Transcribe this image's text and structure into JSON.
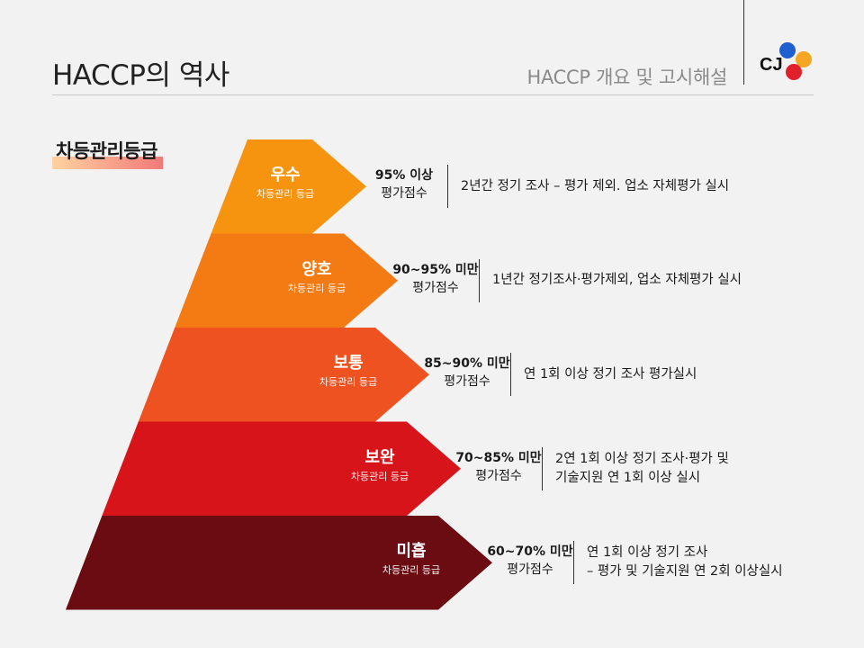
{
  "header": {
    "title": "HACCP의 역사",
    "subtitle": "HACCP 개요 및 고시해설",
    "logo_text": "CJ"
  },
  "section_label": "차등관리등급",
  "levels": [
    {
      "name": "우수",
      "sub": "차등관리 등급",
      "score": "95% 이상",
      "score_label": "평가점수",
      "desc": [
        "2년간 정기 조사 – 평가 제외. 업소 자체평가 실시"
      ],
      "color": "#f7940f"
    },
    {
      "name": "양호",
      "sub": "차등관리 등급",
      "score": "90~95% 미만",
      "score_label": "평가점수",
      "desc": [
        "1년간 정기조사·평가제외,  업소 자체평가 실시"
      ],
      "color": "#f47a14"
    },
    {
      "name": "보통",
      "sub": "차등관리 등급",
      "score": "85~90% 미만",
      "score_label": "평가점수",
      "desc": [
        "연 1회 이상 정기 조사 평가실시"
      ],
      "color": "#ee5220"
    },
    {
      "name": "보완",
      "sub": "차등관리 등급",
      "score": "70~85% 미만",
      "score_label": "평가점수",
      "desc": [
        "2연 1회 이상 정기 조사·평가 및",
        "기술지원 연 1회 이상 실시"
      ],
      "color": "#d6141a"
    },
    {
      "name": "미흡",
      "sub": "차등관리 등급",
      "score": "60~70% 미만",
      "score_label": "평가점수",
      "desc": [
        "연 1회 이상 정기 조사",
        "– 평가 및 기술지원 연 2회 이상실시"
      ],
      "color": "#6b0b12"
    }
  ]
}
